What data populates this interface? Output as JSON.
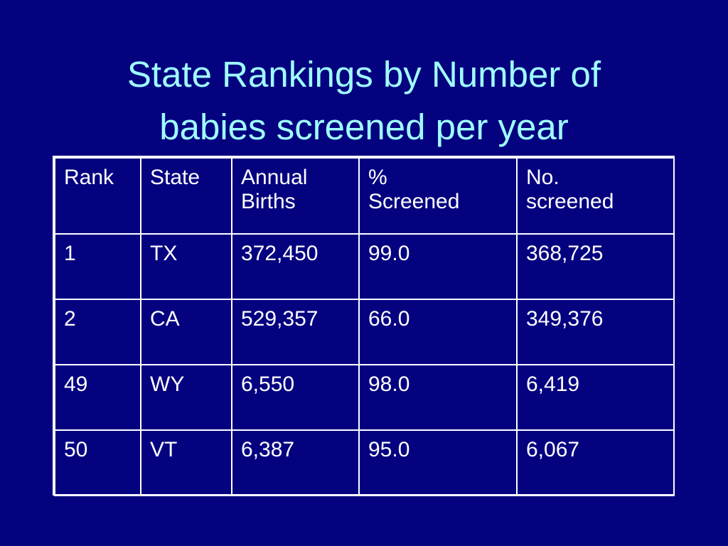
{
  "title": {
    "line1": "State Rankings by Number of",
    "line2": "babies screened per year"
  },
  "table": {
    "headers": [
      [
        "Rank"
      ],
      [
        "State"
      ],
      [
        "Annual",
        "Births"
      ],
      [
        "%",
        "Screened"
      ],
      [
        "No.",
        "screened"
      ]
    ],
    "rows": [
      [
        "1",
        "TX",
        "372,450",
        "99.0",
        "368,725"
      ],
      [
        "2",
        "CA",
        "529,357",
        "66.0",
        "349,376"
      ],
      [
        "49",
        "WY",
        "6,550",
        "98.0",
        "6,419"
      ],
      [
        "50",
        "VT",
        "6,387",
        "95.0",
        "6,067"
      ]
    ]
  },
  "colors": {
    "background": "#050280",
    "title": "#9ffcff",
    "table_text": "#ffffff",
    "table_border": "#ffffff"
  }
}
